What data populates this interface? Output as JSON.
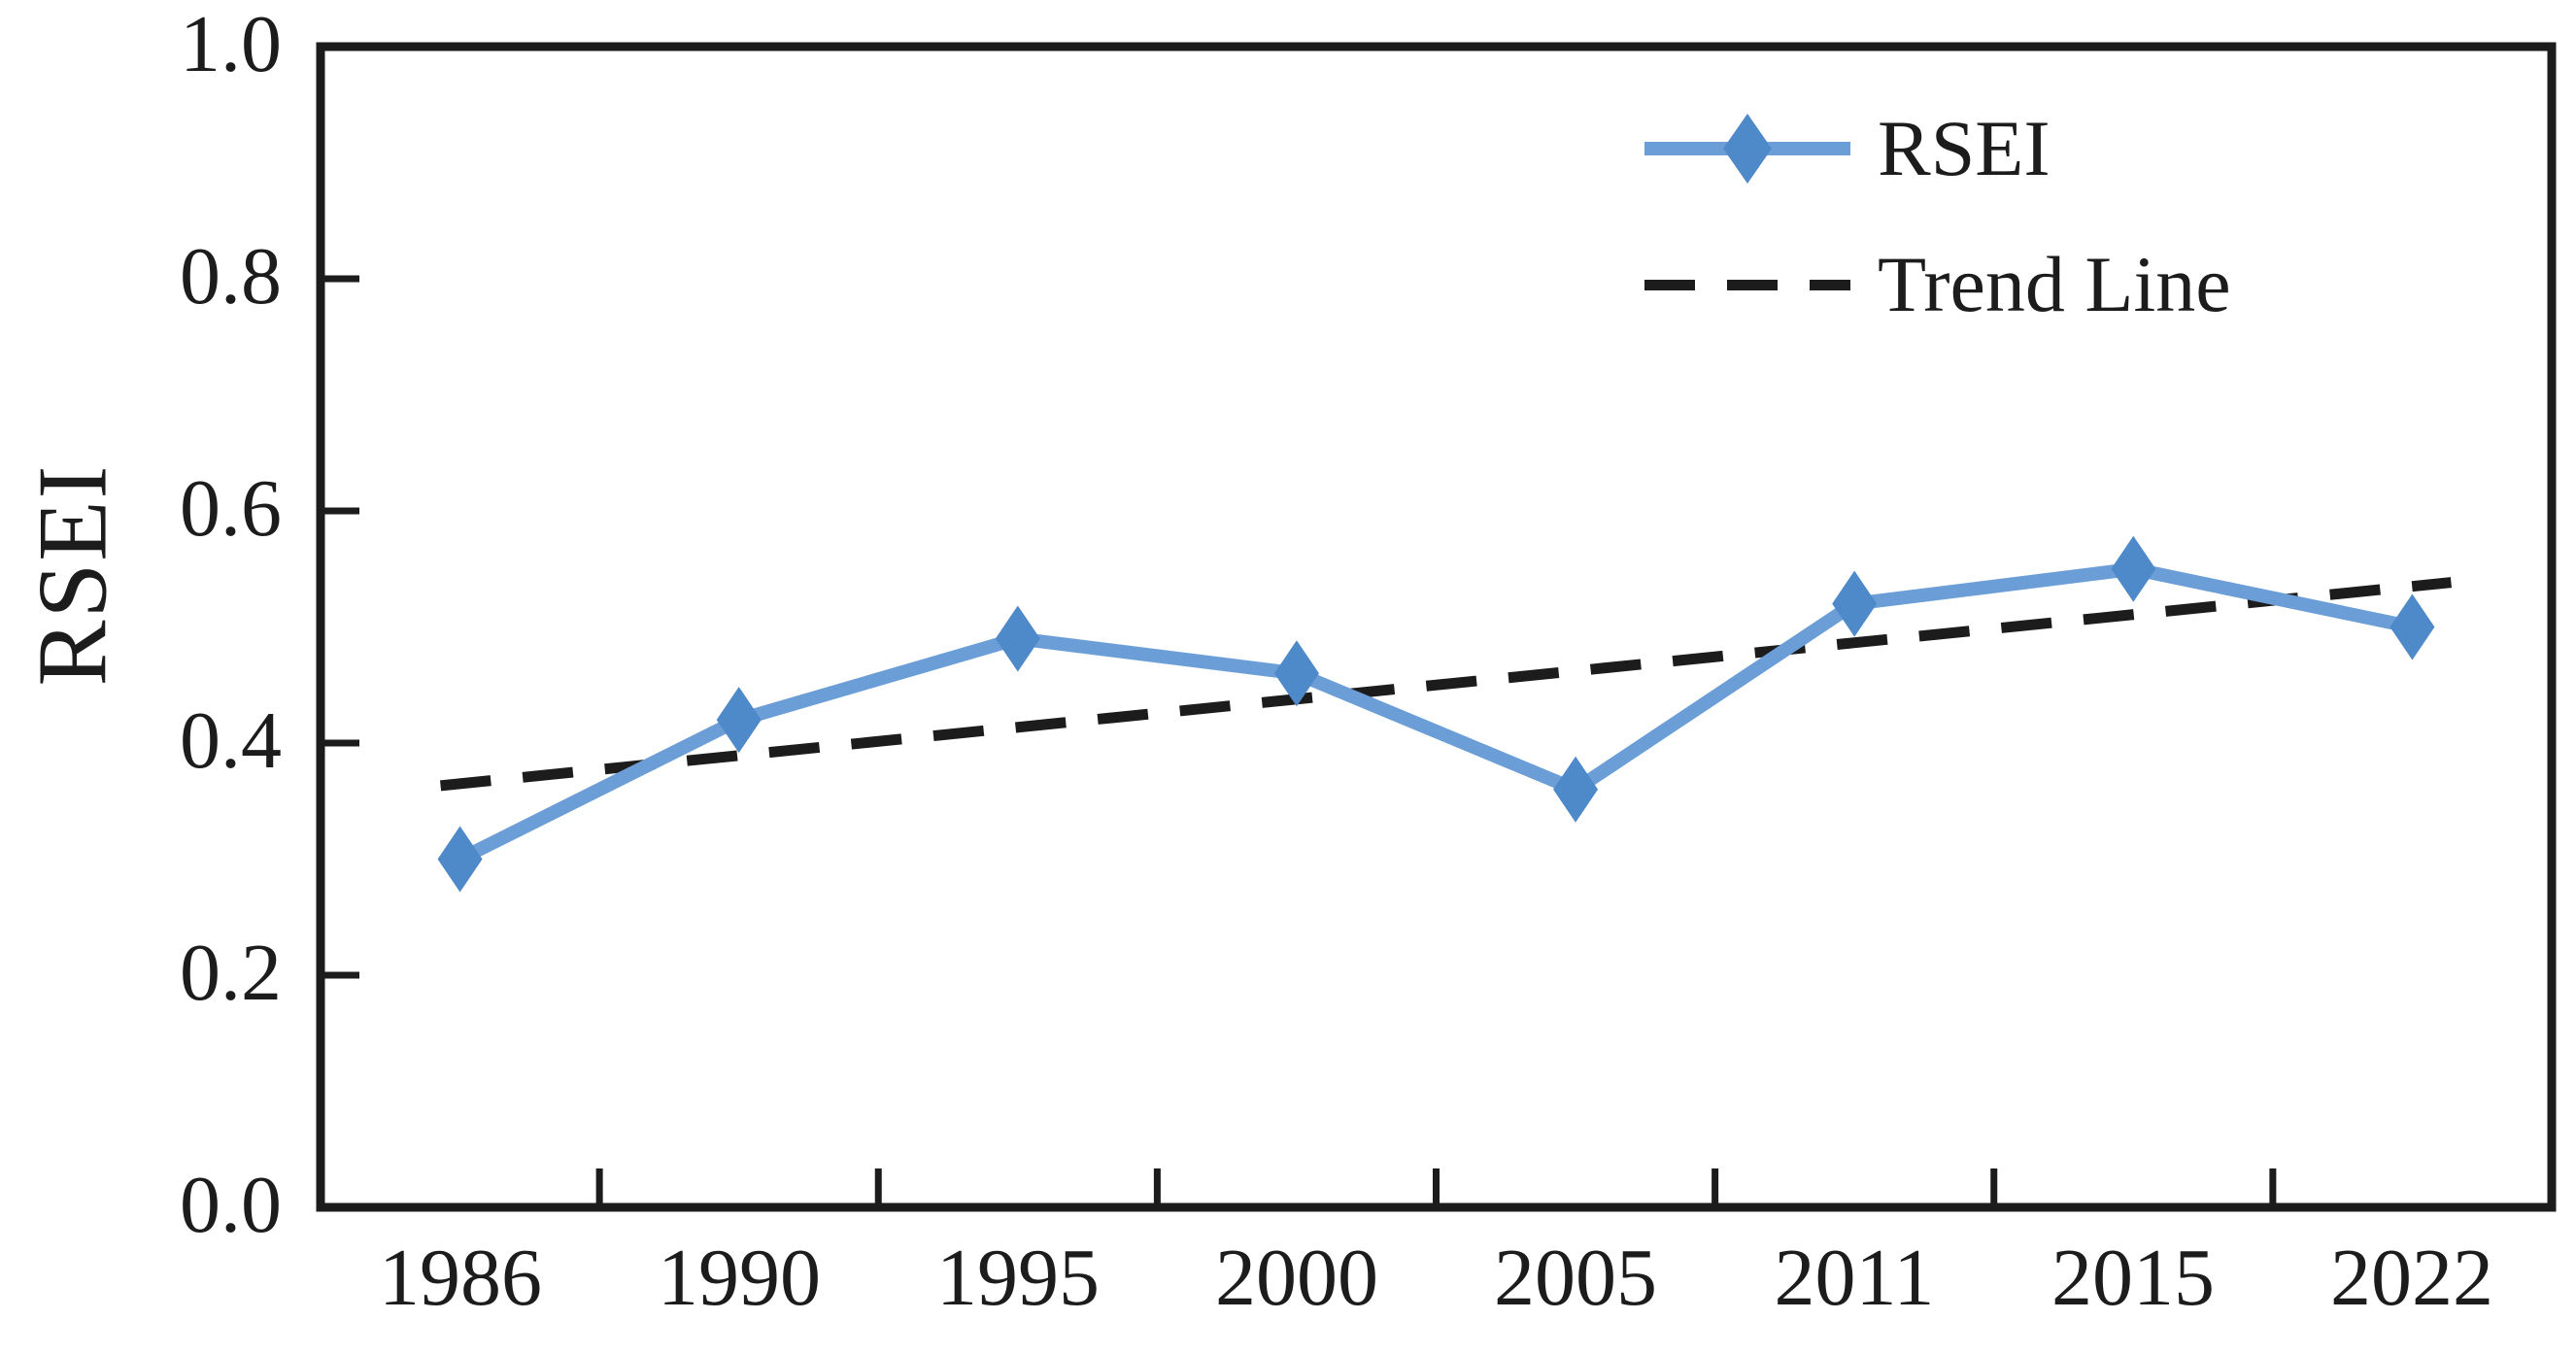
{
  "figure": {
    "background_color": "#ffffff",
    "axis_color": "#1c1c1c",
    "text_color": "#1c1c1c"
  },
  "chart_data": {
    "type": "line",
    "title": "",
    "xlabel": "",
    "ylabel": "RSEI",
    "categories": [
      "1986",
      "1990",
      "1995",
      "2000",
      "2005",
      "2011",
      "2015",
      "2022"
    ],
    "series": [
      {
        "name": "RSEI",
        "marker": "diamond",
        "line_color": "#6b9ed6",
        "marker_color": "#4e89c9",
        "values": [
          0.3,
          0.42,
          0.49,
          0.46,
          0.36,
          0.52,
          0.55,
          0.5
        ]
      },
      {
        "name": "Trend Line",
        "style": "dashed",
        "color": "#1c1c1c",
        "trend_start_value": 0.365,
        "trend_end_value": 0.535
      }
    ],
    "ylim": [
      0.0,
      1.0
    ],
    "yticks": [
      0.0,
      0.2,
      0.4,
      0.6,
      0.8,
      1.0
    ],
    "ytick_labels": [
      "0.0",
      "0.2",
      "0.4",
      "0.6",
      "0.8",
      "1.0"
    ],
    "grid": false,
    "legend_position": "top-right"
  }
}
